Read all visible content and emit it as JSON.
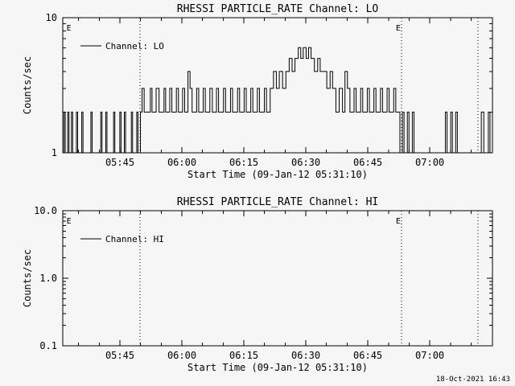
{
  "page": {
    "background": "#f6f6f6",
    "foreground": "#000000",
    "timestamp": "18-Oct-2021 16:43"
  },
  "chart_data": [
    {
      "type": "line",
      "panel": "top",
      "title": "RHESSI PARTICLE_RATE Channel: LO",
      "xlabel": "Start Time (09-Jan-12 05:31:10)",
      "ylabel": "Counts/sec",
      "legend": "Channel: LO",
      "yscale": "log",
      "grid": false,
      "legend_position": "top-left-inside",
      "ylim": [
        1,
        10
      ],
      "yticks": [
        {
          "v": 1,
          "label": "1"
        },
        {
          "v": 10,
          "label": "10"
        }
      ],
      "x_minutes_range": [
        0,
        104
      ],
      "x_epoch_label": "09-Jan-12 05:31:10",
      "xticks": [
        {
          "m": 13.83,
          "label": "05:45"
        },
        {
          "m": 28.83,
          "label": "06:00"
        },
        {
          "m": 43.83,
          "label": "06:15"
        },
        {
          "m": 58.83,
          "label": "06:30"
        },
        {
          "m": 73.83,
          "label": "06:45"
        },
        {
          "m": 88.83,
          "label": "07:00"
        }
      ],
      "flags": [
        {
          "m": 1.5,
          "label": "E"
        },
        {
          "m": 81.2,
          "label": "E"
        }
      ],
      "dotted_vlines_m": [
        18.7,
        82.0,
        100.5
      ],
      "step": true,
      "points": [
        [
          0,
          1
        ],
        [
          0.3,
          2
        ],
        [
          0.6,
          1
        ],
        [
          1.2,
          2
        ],
        [
          1.5,
          1
        ],
        [
          2.1,
          2
        ],
        [
          2.4,
          1
        ],
        [
          3.3,
          2
        ],
        [
          3.6,
          1
        ],
        [
          4.6,
          2
        ],
        [
          4.9,
          1
        ],
        [
          6.8,
          2
        ],
        [
          7.1,
          1
        ],
        [
          9.2,
          2
        ],
        [
          9.5,
          1
        ],
        [
          10.4,
          2
        ],
        [
          10.7,
          1
        ],
        [
          12.3,
          2
        ],
        [
          12.6,
          1
        ],
        [
          13.8,
          2
        ],
        [
          14.1,
          1
        ],
        [
          14.9,
          2
        ],
        [
          15.2,
          1
        ],
        [
          16.6,
          2
        ],
        [
          16.9,
          1
        ],
        [
          17.9,
          2
        ],
        [
          18.2,
          1
        ],
        [
          18.8,
          2
        ],
        [
          19.2,
          3
        ],
        [
          19.7,
          2
        ],
        [
          21.2,
          3
        ],
        [
          21.6,
          2
        ],
        [
          22.6,
          3
        ],
        [
          23.3,
          2
        ],
        [
          24.5,
          3
        ],
        [
          24.9,
          2
        ],
        [
          25.9,
          3
        ],
        [
          26.4,
          2
        ],
        [
          27.5,
          3
        ],
        [
          28.0,
          2
        ],
        [
          29.0,
          3
        ],
        [
          29.5,
          2
        ],
        [
          30.3,
          4
        ],
        [
          30.8,
          3
        ],
        [
          31.3,
          2
        ],
        [
          32.4,
          3
        ],
        [
          32.9,
          2
        ],
        [
          34.0,
          3
        ],
        [
          34.5,
          2
        ],
        [
          35.6,
          3
        ],
        [
          36.2,
          2
        ],
        [
          37.2,
          3
        ],
        [
          37.7,
          2
        ],
        [
          38.9,
          3
        ],
        [
          39.4,
          2
        ],
        [
          40.6,
          3
        ],
        [
          41.1,
          2
        ],
        [
          42.3,
          3
        ],
        [
          42.8,
          2
        ],
        [
          43.9,
          3
        ],
        [
          44.4,
          2
        ],
        [
          45.5,
          3
        ],
        [
          46.0,
          2
        ],
        [
          47.1,
          3
        ],
        [
          47.6,
          2
        ],
        [
          48.8,
          3
        ],
        [
          49.3,
          2
        ],
        [
          50.2,
          3
        ],
        [
          51.0,
          4
        ],
        [
          51.7,
          3
        ],
        [
          52.4,
          4
        ],
        [
          53.2,
          3
        ],
        [
          54.0,
          4
        ],
        [
          54.8,
          5
        ],
        [
          55.5,
          4
        ],
        [
          56.2,
          5
        ],
        [
          57.0,
          6
        ],
        [
          57.6,
          5
        ],
        [
          58.2,
          6
        ],
        [
          58.9,
          5
        ],
        [
          59.5,
          6
        ],
        [
          60.1,
          5
        ],
        [
          60.9,
          4
        ],
        [
          61.7,
          5
        ],
        [
          62.3,
          4
        ],
        [
          63.1,
          4
        ],
        [
          63.9,
          3
        ],
        [
          64.7,
          4
        ],
        [
          65.3,
          3
        ],
        [
          66.1,
          2
        ],
        [
          66.9,
          3
        ],
        [
          67.7,
          2
        ],
        [
          68.3,
          4
        ],
        [
          68.9,
          3
        ],
        [
          69.5,
          2
        ],
        [
          70.5,
          3
        ],
        [
          71.0,
          2
        ],
        [
          72.1,
          3
        ],
        [
          72.6,
          2
        ],
        [
          73.7,
          3
        ],
        [
          74.2,
          2
        ],
        [
          75.3,
          3
        ],
        [
          75.8,
          2
        ],
        [
          76.9,
          3
        ],
        [
          77.4,
          2
        ],
        [
          78.5,
          3
        ],
        [
          79.0,
          2
        ],
        [
          80.1,
          3
        ],
        [
          80.6,
          2
        ],
        [
          81.6,
          1
        ],
        [
          82.2,
          2
        ],
        [
          82.6,
          1
        ],
        [
          83.4,
          2
        ],
        [
          83.8,
          1
        ],
        [
          84.6,
          2
        ],
        [
          85.0,
          1
        ],
        [
          92.6,
          2
        ],
        [
          93.0,
          1
        ],
        [
          93.9,
          2
        ],
        [
          94.3,
          1
        ],
        [
          95.1,
          2
        ],
        [
          95.5,
          1
        ],
        [
          101.3,
          2
        ],
        [
          101.9,
          1
        ],
        [
          103.0,
          2
        ],
        [
          103.4,
          1
        ],
        [
          104,
          1
        ]
      ]
    },
    {
      "type": "line",
      "panel": "bottom",
      "title": "RHESSI PARTICLE_RATE Channel: HI",
      "xlabel": "Start Time (09-Jan-12 05:31:10)",
      "ylabel": "Counts/sec",
      "legend": "Channel: HI",
      "yscale": "log",
      "grid": false,
      "legend_position": "top-left-inside",
      "ylim": [
        0.1,
        10
      ],
      "yticks": [
        {
          "v": 0.1,
          "label": "0.1"
        },
        {
          "v": 1,
          "label": "1.0"
        },
        {
          "v": 10,
          "label": "10.0"
        }
      ],
      "x_minutes_range": [
        0,
        104
      ],
      "x_epoch_label": "09-Jan-12 05:31:10",
      "xticks": [
        {
          "m": 13.83,
          "label": "05:45"
        },
        {
          "m": 28.83,
          "label": "06:00"
        },
        {
          "m": 43.83,
          "label": "06:15"
        },
        {
          "m": 58.83,
          "label": "06:30"
        },
        {
          "m": 73.83,
          "label": "06:45"
        },
        {
          "m": 88.83,
          "label": "07:00"
        }
      ],
      "flags": [
        {
          "m": 1.5,
          "label": "E"
        },
        {
          "m": 81.2,
          "label": "E"
        }
      ],
      "dotted_vlines_m": [
        18.7,
        82.0,
        100.5
      ],
      "step": true,
      "points": []
    }
  ]
}
